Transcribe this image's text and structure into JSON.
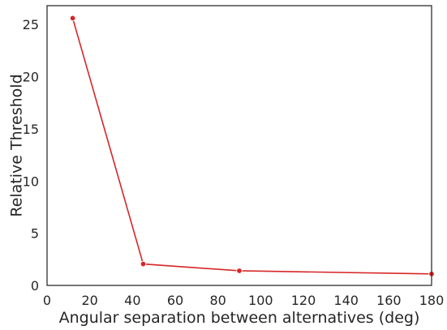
{
  "chart_data": {
    "type": "line",
    "title": "",
    "xlabel": "Angular separation between alternatives (deg)",
    "ylabel": "Relative Threshold",
    "xlim": [
      0,
      180
    ],
    "ylim": [
      0,
      26.8
    ],
    "xticks": [
      0,
      20,
      40,
      60,
      80,
      100,
      120,
      140,
      160,
      180
    ],
    "yticks": [
      0,
      5,
      10,
      15,
      20,
      25
    ],
    "grid": false,
    "series": [
      {
        "color": "#d62728",
        "marker": "circle",
        "x": [
          12,
          45,
          90,
          180
        ],
        "y": [
          25.6,
          2.05,
          1.4,
          1.1
        ]
      }
    ]
  }
}
